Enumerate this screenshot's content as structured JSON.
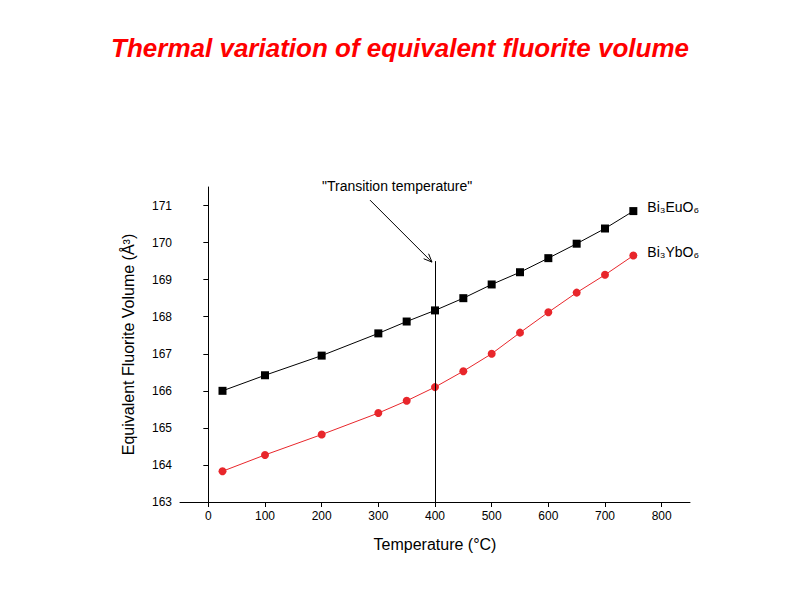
{
  "chart_data": {
    "type": "line",
    "title": "Thermal variation of equivalent fluorite volume",
    "x_label": "Temperature (°C)",
    "y_label": "Equivalent Fluorite Volume (Å³)",
    "xlim": [
      -50,
      850
    ],
    "xticks": [
      0,
      100,
      200,
      300,
      400,
      500,
      600,
      700,
      800
    ],
    "ylim": [
      163,
      171.5
    ],
    "yticks": [
      163,
      164,
      165,
      166,
      167,
      168,
      169,
      170,
      171
    ],
    "grid": false,
    "annotation": {
      "text": "\"Transition temperature\"",
      "x": 400,
      "y_start": 163,
      "y_end": 169.5
    },
    "series": [
      {
        "name": "Bi₃EuO₆",
        "color": "#000000",
        "marker": "square",
        "line_style": "solid",
        "x": [
          25,
          100,
          200,
          300,
          350,
          400,
          450,
          500,
          550,
          600,
          650,
          700,
          750
        ],
        "values": [
          166.0,
          166.42,
          166.95,
          167.55,
          167.87,
          168.17,
          168.5,
          168.87,
          169.2,
          169.58,
          169.97,
          170.38,
          170.85
        ]
      },
      {
        "name": "Bi₃YbO₆",
        "color": "#e8262b",
        "marker": "circle",
        "line_style": "solid",
        "x": [
          25,
          100,
          200,
          300,
          350,
          400,
          450,
          500,
          550,
          600,
          650,
          700,
          750
        ],
        "values": [
          163.83,
          164.27,
          164.82,
          165.4,
          165.73,
          166.1,
          166.53,
          167.0,
          167.57,
          168.12,
          168.65,
          169.13,
          169.65
        ]
      }
    ]
  }
}
